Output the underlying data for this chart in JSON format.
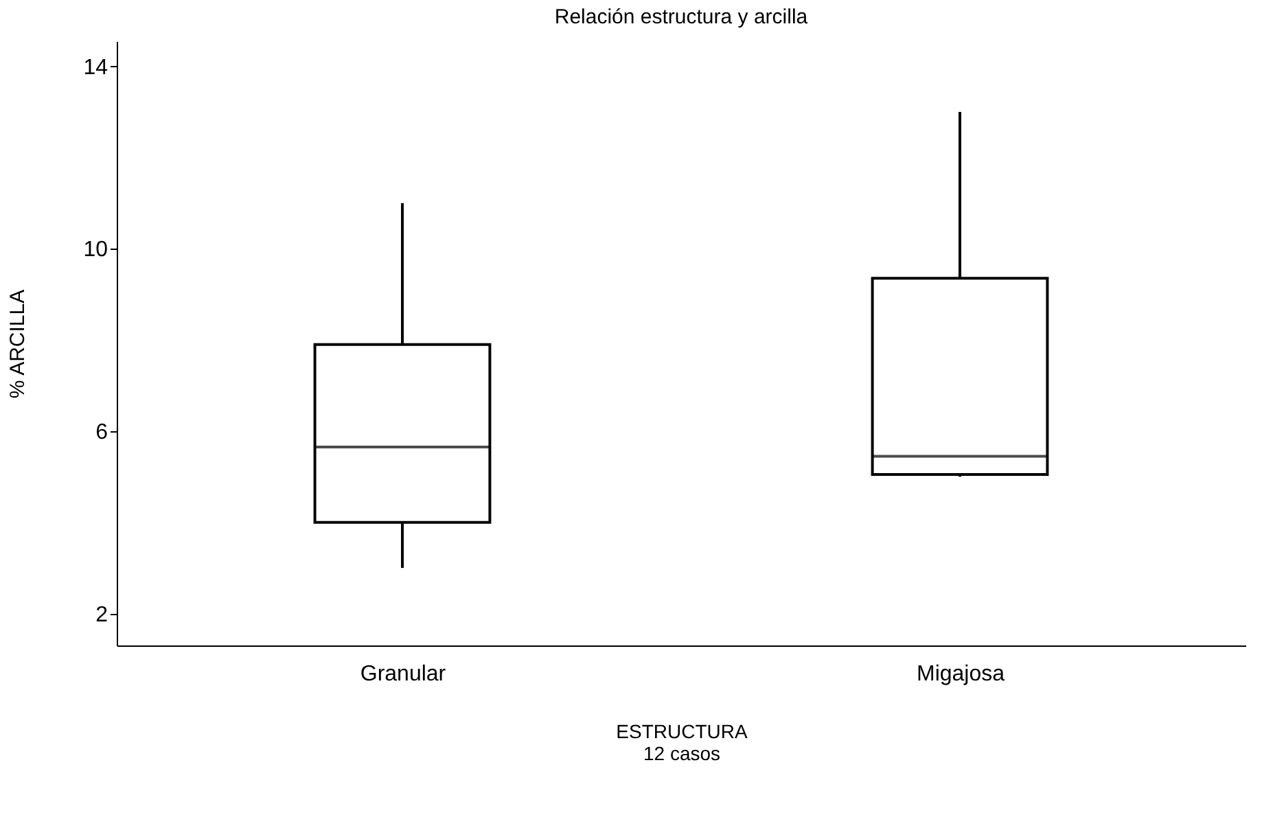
{
  "chart_data": {
    "type": "box",
    "title": "Relación estructura y arcilla",
    "xlabel": "ESTRUCTURA",
    "ylabel": "% ARCILLA",
    "annotations": [
      "12 casos"
    ],
    "categories": [
      "Granular",
      "Migajosa"
    ],
    "boxes": [
      {
        "low": 3.0,
        "q1": 4.0,
        "median": 5.65,
        "q3": 7.9,
        "high": 11.0
      },
      {
        "low": 5.0,
        "q1": 5.05,
        "median": 5.45,
        "q3": 9.35,
        "high": 13.0
      }
    ],
    "color": "#000000",
    "ylim": [
      1.3,
      14.55
    ],
    "yticks": [
      2,
      6,
      10,
      14
    ],
    "grid": false
  }
}
